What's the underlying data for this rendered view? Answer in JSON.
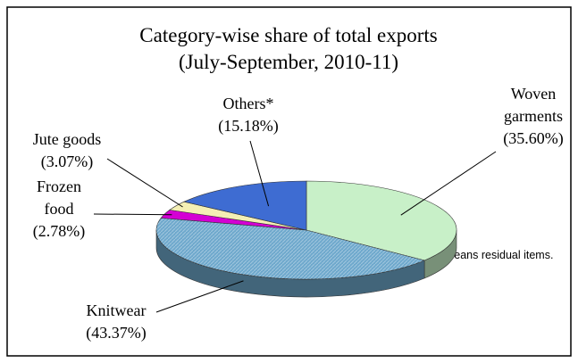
{
  "chart_data": {
    "type": "pie",
    "title": "Category-wise share of total exports",
    "subtitle": "(July-September, 2010-11)",
    "categories": [
      "Woven garments",
      "Knitwear",
      "Frozen food",
      "Jute goods",
      "Others*"
    ],
    "values": [
      35.6,
      43.37,
      2.78,
      3.07,
      15.18
    ],
    "value_labels": [
      "(35.60%)",
      "(43.37%)",
      "(2.78%)",
      "(3.07%)",
      "(15.18%)"
    ],
    "colors": [
      "#c8f0c8",
      "#6ea8cc",
      "#d400d4",
      "#f4efb4",
      "#3e6cd2"
    ],
    "annotation": "* Others means residual items."
  }
}
